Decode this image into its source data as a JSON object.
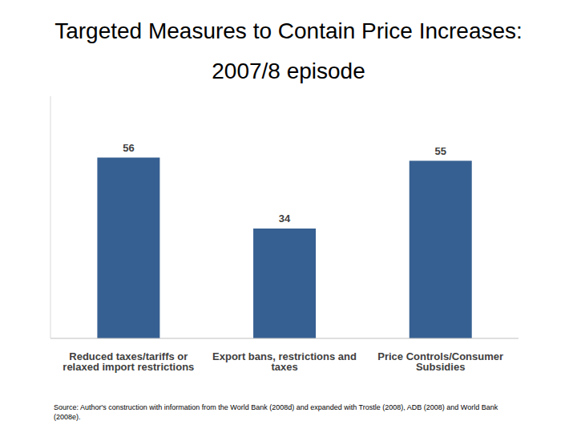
{
  "chart_data": {
    "type": "bar",
    "title": "Targeted Measures to Contain Price Increases: 2007/8 episode",
    "categories": [
      "Reduced taxes/tariffs or relaxed import restrictions",
      "Export bans, restrictions and taxes",
      "Price Controls/Consumer Subsidies"
    ],
    "values": [
      56,
      34,
      55
    ],
    "color": "#376092",
    "ylim": [
      0,
      75
    ],
    "data_labels": true,
    "tick_labels": "x",
    "grid": false,
    "source": "Source: Author's construction with information from the World Bank (2008d) and expanded with Trostle (2008), ADB (2008) and World Bank (2008e)."
  }
}
